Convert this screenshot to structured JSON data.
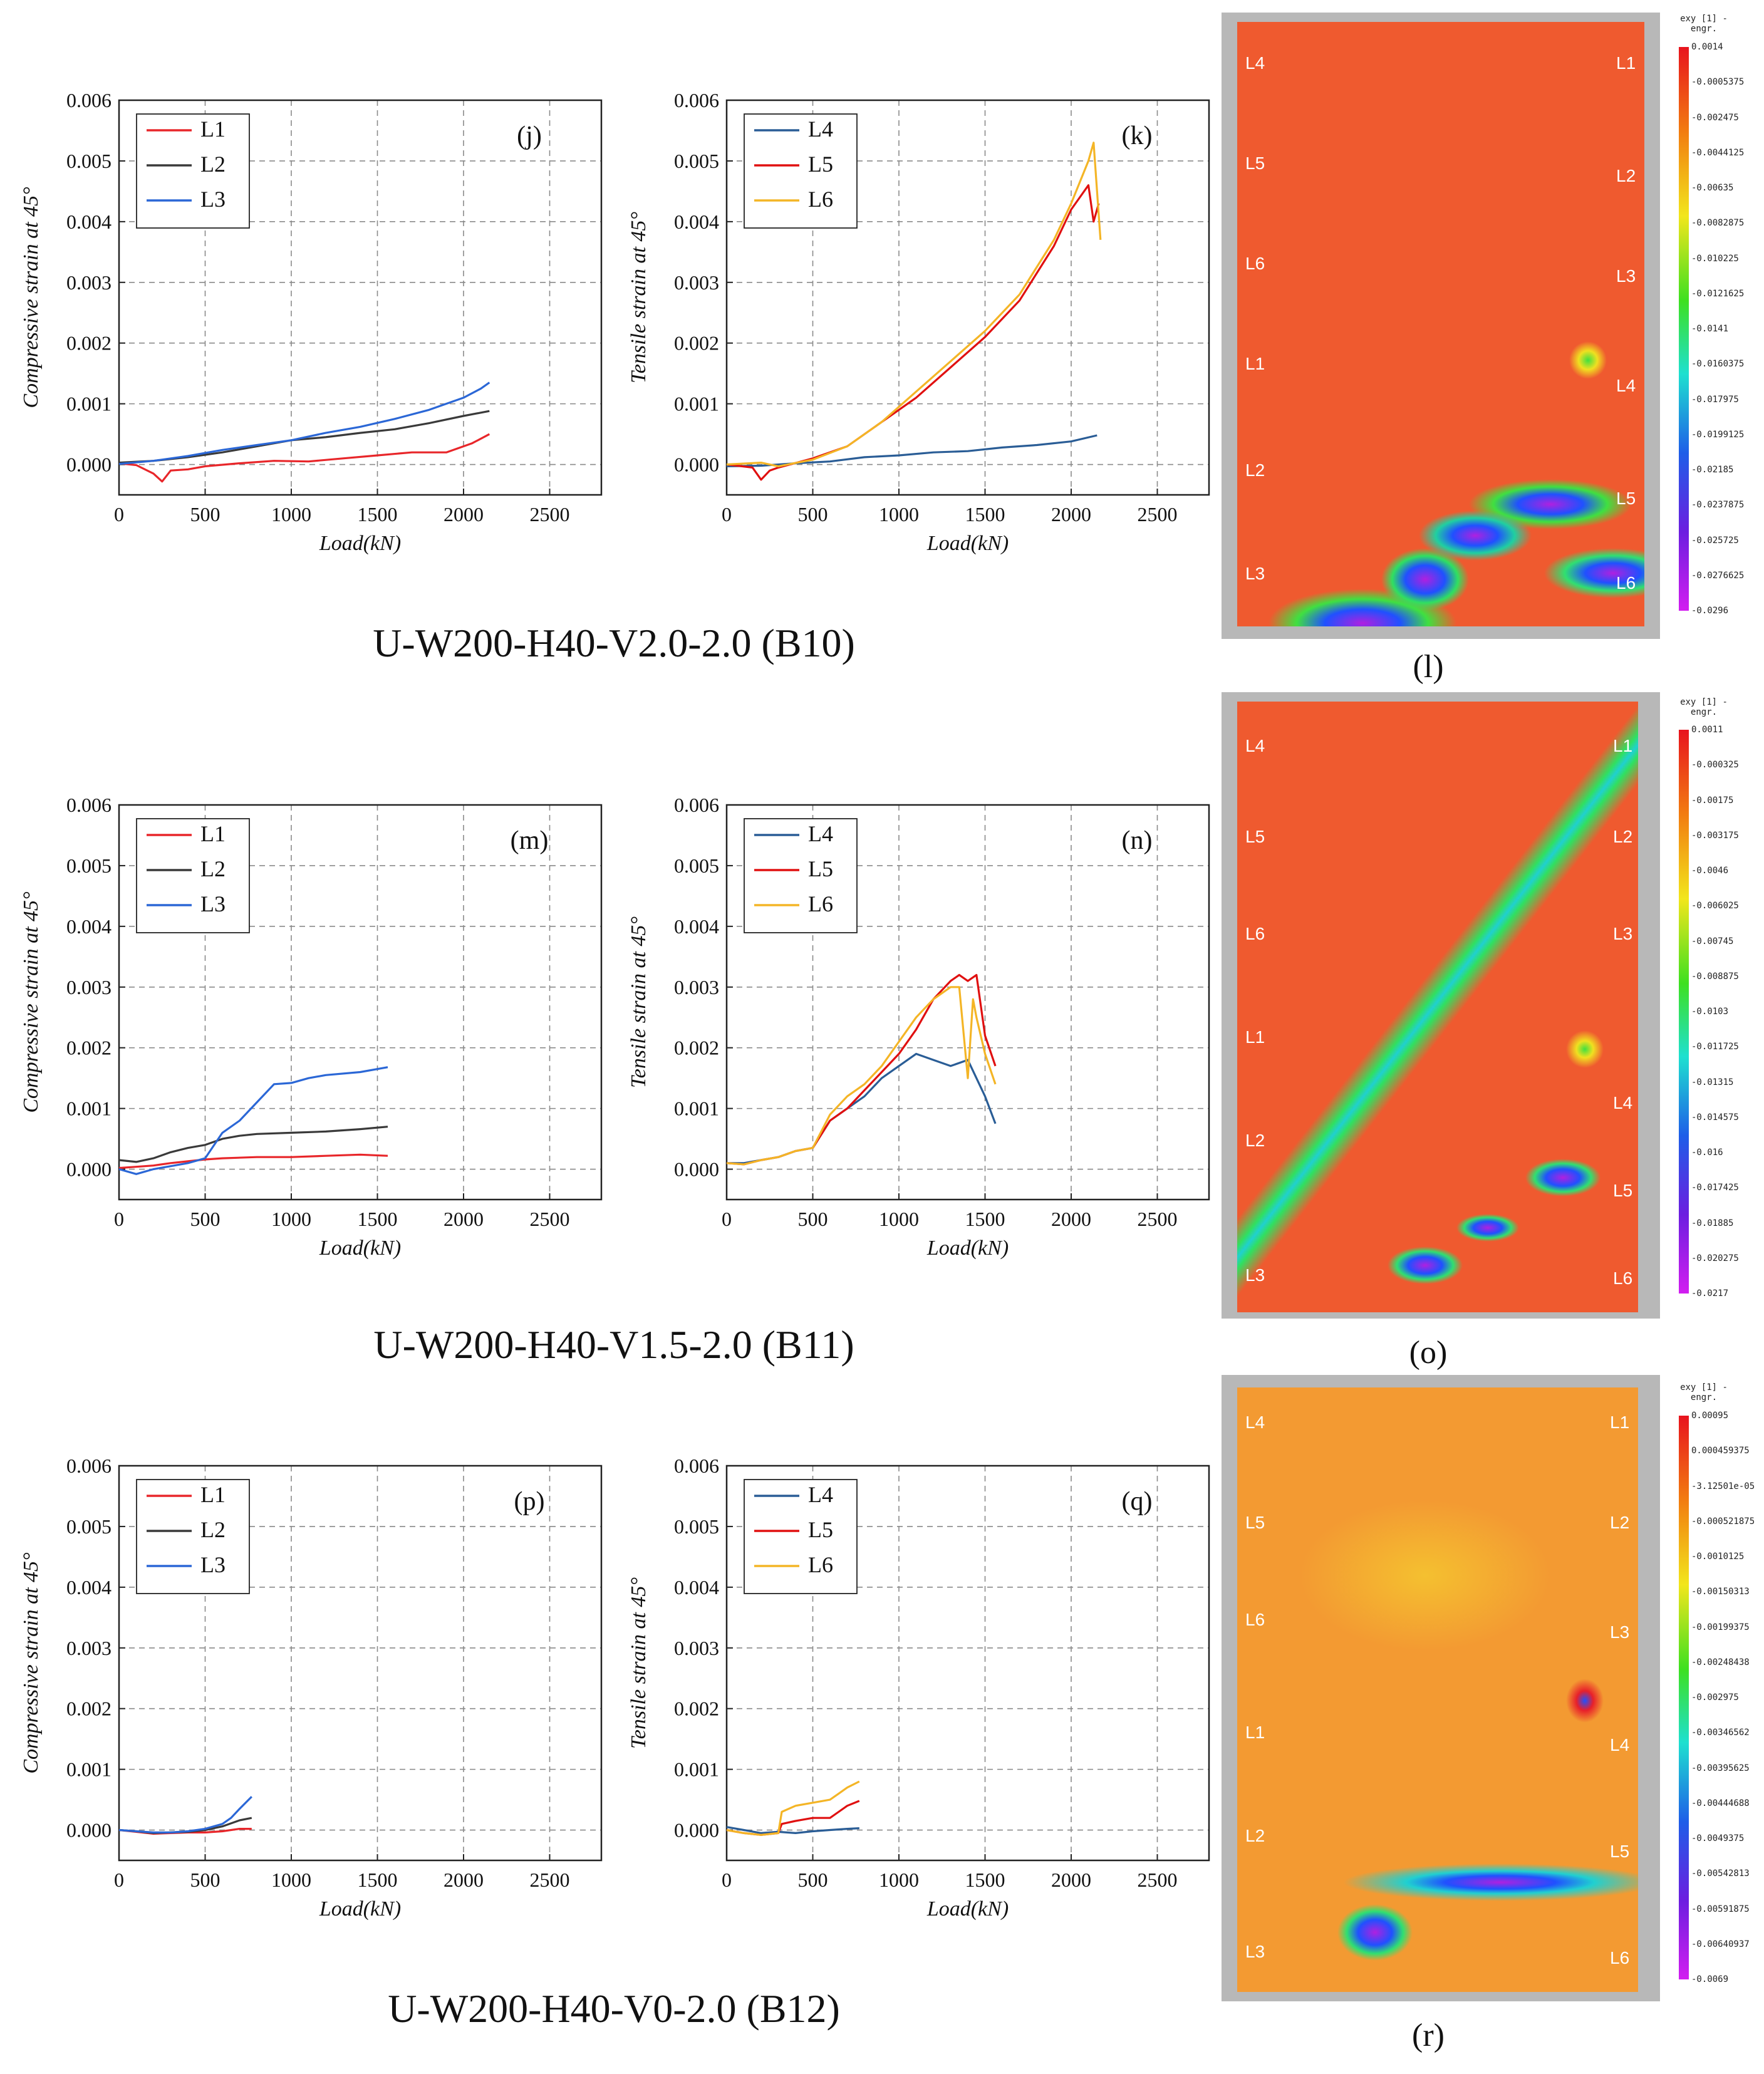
{
  "figure_titles": [
    "U-W200-H40-V2.0-2.0 (B10)",
    "U-W200-H40-V1.5-2.0 (B11)",
    "U-W200-H40-V0-2.0 (B12)"
  ],
  "chart_data": [
    {
      "id": "j",
      "type": "line",
      "panel_label": "(j)",
      "xlabel": "Load(kN)",
      "ylabel": "Compressive strain at 45°",
      "xlim": [
        0,
        2800
      ],
      "ylim": [
        -0.0005,
        0.006
      ],
      "xticks": [
        "0",
        "500",
        "1000",
        "1500",
        "2000",
        "2500"
      ],
      "yticks": [
        "0.000",
        "0.001",
        "0.002",
        "0.003",
        "0.004",
        "0.005",
        "0.006"
      ],
      "series": [
        {
          "name": "L1",
          "color": "#e8262a",
          "x": [
            0,
            100,
            200,
            250,
            300,
            400,
            500,
            700,
            900,
            1100,
            1300,
            1500,
            1700,
            1900,
            2050,
            2150
          ],
          "y": [
            2e-05,
            -1e-05,
            -0.00015,
            -0.00028,
            -0.0001,
            -8e-05,
            -3e-05,
            2e-05,
            6e-05,
            5e-05,
            0.0001,
            0.00015,
            0.0002,
            0.0002,
            0.00035,
            0.0005
          ]
        },
        {
          "name": "L2",
          "color": "#3a3a3a",
          "x": [
            0,
            200,
            400,
            600,
            800,
            1000,
            1200,
            1400,
            1600,
            1800,
            2000,
            2150
          ],
          "y": [
            3e-05,
            6e-05,
            0.00012,
            0.0002,
            0.0003,
            0.0004,
            0.00045,
            0.00052,
            0.00058,
            0.00068,
            0.0008,
            0.00088
          ]
        },
        {
          "name": "L3",
          "color": "#2b67d6",
          "x": [
            0,
            200,
            400,
            600,
            800,
            1000,
            1200,
            1400,
            1600,
            1800,
            2000,
            2100,
            2150
          ],
          "y": [
            1e-05,
            6e-05,
            0.00014,
            0.00024,
            0.00032,
            0.0004,
            0.00052,
            0.00062,
            0.00075,
            0.0009,
            0.0011,
            0.00125,
            0.00135
          ]
        }
      ]
    },
    {
      "id": "k",
      "type": "line",
      "panel_label": "(k)",
      "xlabel": "Load(kN)",
      "ylabel": "Tensile strain at 45°",
      "xlim": [
        0,
        2800
      ],
      "ylim": [
        -0.0005,
        0.006
      ],
      "xticks": [
        "0",
        "500",
        "1000",
        "1500",
        "2000",
        "2500"
      ],
      "yticks": [
        "0.000",
        "0.001",
        "0.002",
        "0.003",
        "0.004",
        "0.005",
        "0.006"
      ],
      "series": [
        {
          "name": "L4",
          "color": "#2a5d96",
          "x": [
            0,
            200,
            400,
            600,
            800,
            1000,
            1200,
            1400,
            1600,
            1800,
            2000,
            2150
          ],
          "y": [
            -3e-05,
            -2e-05,
            2e-05,
            5e-05,
            0.00012,
            0.00015,
            0.0002,
            0.00022,
            0.00028,
            0.00032,
            0.00038,
            0.00048
          ]
        },
        {
          "name": "L5",
          "color": "#e01010",
          "x": [
            0,
            150,
            200,
            250,
            300,
            500,
            700,
            900,
            1100,
            1300,
            1500,
            1700,
            1900,
            2000,
            2100,
            2130,
            2160
          ],
          "y": [
            0,
            -5e-05,
            -0.00025,
            -0.0001,
            -5e-05,
            0.0001,
            0.0003,
            0.0007,
            0.0011,
            0.0016,
            0.0021,
            0.0027,
            0.0036,
            0.0042,
            0.0046,
            0.004,
            0.0043
          ]
        },
        {
          "name": "L6",
          "color": "#f4b526",
          "x": [
            0,
            200,
            300,
            500,
            700,
            900,
            1100,
            1300,
            1500,
            1700,
            1900,
            2000,
            2100,
            2130,
            2150,
            2170
          ],
          "y": [
            0,
            3e-05,
            -3e-05,
            8e-05,
            0.0003,
            0.0007,
            0.0012,
            0.0017,
            0.0022,
            0.0028,
            0.0037,
            0.0043,
            0.005,
            0.0053,
            0.0045,
            0.0037
          ]
        }
      ]
    },
    {
      "id": "m",
      "type": "line",
      "panel_label": "(m)",
      "xlabel": "Load(kN)",
      "ylabel": "Compressive strain at 45°",
      "xlim": [
        0,
        2800
      ],
      "ylim": [
        -0.0005,
        0.006
      ],
      "xticks": [
        "0",
        "500",
        "1000",
        "1500",
        "2000",
        "2500"
      ],
      "yticks": [
        "0.000",
        "0.001",
        "0.002",
        "0.003",
        "0.004",
        "0.005",
        "0.006"
      ],
      "series": [
        {
          "name": "L1",
          "color": "#e8262a",
          "x": [
            0,
            100,
            200,
            300,
            400,
            500,
            600,
            800,
            1000,
            1200,
            1400,
            1560
          ],
          "y": [
            2e-05,
            4e-05,
            6e-05,
            0.0001,
            0.00013,
            0.00016,
            0.00018,
            0.0002,
            0.0002,
            0.00022,
            0.00024,
            0.00022
          ]
        },
        {
          "name": "L2",
          "color": "#3a3a3a",
          "x": [
            0,
            100,
            200,
            300,
            400,
            500,
            600,
            700,
            800,
            1000,
            1200,
            1400,
            1560
          ],
          "y": [
            0.00015,
            0.00012,
            0.00018,
            0.00028,
            0.00035,
            0.0004,
            0.0005,
            0.00055,
            0.00058,
            0.0006,
            0.00062,
            0.00066,
            0.0007
          ]
        },
        {
          "name": "L3",
          "color": "#2b67d6",
          "x": [
            0,
            100,
            200,
            300,
            400,
            500,
            600,
            700,
            800,
            900,
            1000,
            1100,
            1200,
            1400,
            1560
          ],
          "y": [
            0,
            -8e-05,
            0.0,
            5e-05,
            0.0001,
            0.00018,
            0.0006,
            0.0008,
            0.0011,
            0.0014,
            0.00142,
            0.0015,
            0.00155,
            0.0016,
            0.00168
          ]
        }
      ]
    },
    {
      "id": "n",
      "type": "line",
      "panel_label": "(n)",
      "xlabel": "Load(kN)",
      "ylabel": "Tensile strain at 45°",
      "xlim": [
        0,
        2800
      ],
      "ylim": [
        -0.0005,
        0.006
      ],
      "xticks": [
        "0",
        "500",
        "1000",
        "1500",
        "2000",
        "2500"
      ],
      "yticks": [
        "0.000",
        "0.001",
        "0.002",
        "0.003",
        "0.004",
        "0.005",
        "0.006"
      ],
      "series": [
        {
          "name": "L4",
          "color": "#2a5d96",
          "x": [
            0,
            100,
            200,
            300,
            400,
            500,
            600,
            700,
            800,
            900,
            1000,
            1100,
            1200,
            1300,
            1400,
            1500,
            1560
          ],
          "y": [
            0.0001,
            0.0001,
            0.00015,
            0.0002,
            0.0003,
            0.00035,
            0.0008,
            0.001,
            0.0012,
            0.0015,
            0.0017,
            0.0019,
            0.0018,
            0.0017,
            0.0018,
            0.0012,
            0.00075
          ]
        },
        {
          "name": "L5",
          "color": "#e01010",
          "x": [
            0,
            100,
            200,
            300,
            400,
            500,
            600,
            700,
            800,
            900,
            1000,
            1100,
            1200,
            1300,
            1350,
            1400,
            1450,
            1500,
            1560
          ],
          "y": [
            0.0001,
            8e-05,
            0.00015,
            0.0002,
            0.0003,
            0.00035,
            0.0008,
            0.001,
            0.0013,
            0.0016,
            0.0019,
            0.0023,
            0.0028,
            0.0031,
            0.0032,
            0.0031,
            0.0032,
            0.0022,
            0.0017
          ]
        },
        {
          "name": "L6",
          "color": "#f4b526",
          "x": [
            0,
            100,
            200,
            300,
            400,
            500,
            600,
            700,
            800,
            900,
            1000,
            1100,
            1200,
            1300,
            1350,
            1400,
            1430,
            1450,
            1500,
            1560
          ],
          "y": [
            0.0001,
            8e-05,
            0.00015,
            0.0002,
            0.0003,
            0.00035,
            0.0009,
            0.0012,
            0.0014,
            0.0017,
            0.0021,
            0.0025,
            0.0028,
            0.003,
            0.003,
            0.0015,
            0.0028,
            0.0025,
            0.0019,
            0.0014
          ]
        }
      ]
    },
    {
      "id": "p",
      "type": "line",
      "panel_label": "(p)",
      "xlabel": "Load(kN)",
      "ylabel": "Compressive strain at 45°",
      "xlim": [
        0,
        2800
      ],
      "ylim": [
        -0.0005,
        0.006
      ],
      "xticks": [
        "0",
        "500",
        "1000",
        "1500",
        "2000",
        "2500"
      ],
      "yticks": [
        "0.000",
        "0.001",
        "0.002",
        "0.003",
        "0.004",
        "0.005",
        "0.006"
      ],
      "series": [
        {
          "name": "L1",
          "color": "#e8262a",
          "x": [
            0,
            100,
            200,
            300,
            400,
            500,
            600,
            700,
            770
          ],
          "y": [
            0,
            -3e-05,
            -6e-05,
            -5e-05,
            -4e-05,
            -4e-05,
            -2e-05,
            2e-05,
            2e-05
          ]
        },
        {
          "name": "L2",
          "color": "#3a3a3a",
          "x": [
            0,
            100,
            200,
            300,
            400,
            500,
            600,
            700,
            770
          ],
          "y": [
            0,
            -2e-05,
            -5e-05,
            -4e-05,
            -3e-05,
            0.0,
            6e-05,
            0.00016,
            0.0002
          ]
        },
        {
          "name": "L3",
          "color": "#2b67d6",
          "x": [
            0,
            100,
            200,
            300,
            400,
            500,
            600,
            650,
            700,
            770
          ],
          "y": [
            0,
            -2e-05,
            -4e-05,
            -4e-05,
            -2e-05,
            2e-05,
            0.0001,
            0.0002,
            0.00035,
            0.00055
          ]
        }
      ]
    },
    {
      "id": "q",
      "type": "line",
      "panel_label": "(q)",
      "xlabel": "Load(kN)",
      "ylabel": "Tensile strain at 45°",
      "xlim": [
        0,
        2800
      ],
      "ylim": [
        -0.0005,
        0.006
      ],
      "xticks": [
        "0",
        "500",
        "1000",
        "1500",
        "2000",
        "2500"
      ],
      "yticks": [
        "0.000",
        "0.001",
        "0.002",
        "0.003",
        "0.004",
        "0.005",
        "0.006"
      ],
      "series": [
        {
          "name": "L4",
          "color": "#2a5d96",
          "x": [
            0,
            100,
            200,
            300,
            400,
            500,
            600,
            700,
            770
          ],
          "y": [
            5e-05,
            0.0,
            -5e-05,
            -3e-05,
            -5e-05,
            -2e-05,
            0.0,
            2e-05,
            3e-05
          ]
        },
        {
          "name": "L5",
          "color": "#e01010",
          "x": [
            0,
            100,
            200,
            300,
            320,
            400,
            500,
            600,
            650,
            700,
            770
          ],
          "y": [
            0,
            -5e-05,
            -8e-05,
            -5e-05,
            0.0001,
            0.00015,
            0.0002,
            0.0002,
            0.0003,
            0.0004,
            0.00048
          ]
        },
        {
          "name": "L6",
          "color": "#f4b526",
          "x": [
            0,
            100,
            200,
            300,
            320,
            400,
            500,
            600,
            650,
            700,
            770
          ],
          "y": [
            0,
            -5e-05,
            -8e-05,
            -5e-05,
            0.0003,
            0.0004,
            0.00045,
            0.0005,
            0.0006,
            0.0007,
            0.0008
          ]
        }
      ]
    }
  ],
  "dic_panels": [
    {
      "id": "l",
      "caption": "(l)",
      "colorbar_title": "exy [1] - engr.",
      "colorbar_ticks": [
        "0.0014",
        "-0.0005375",
        "-0.002475",
        "-0.0044125",
        "-0.00635",
        "-0.0082875",
        "-0.010225",
        "-0.0121625",
        "-0.0141",
        "-0.0160375",
        "-0.017975",
        "-0.0199125",
        "-0.02185",
        "-0.0237875",
        "-0.025725",
        "-0.0276625",
        "-0.0296"
      ],
      "left_labels": [
        "L4",
        "L5",
        "L6",
        "L1",
        "L2",
        "L3"
      ],
      "right_labels": [
        "L1",
        "L2",
        "L3",
        "L4",
        "L5",
        "L6"
      ]
    },
    {
      "id": "o",
      "caption": "(o)",
      "colorbar_title": "exy [1] - engr.",
      "colorbar_ticks": [
        "0.0011",
        "-0.000325",
        "-0.00175",
        "-0.003175",
        "-0.0046",
        "-0.006025",
        "-0.00745",
        "-0.008875",
        "-0.0103",
        "-0.011725",
        "-0.01315",
        "-0.014575",
        "-0.016",
        "-0.017425",
        "-0.01885",
        "-0.020275",
        "-0.0217"
      ],
      "left_labels": [
        "L4",
        "L5",
        "L6",
        "L1",
        "L2",
        "L3"
      ],
      "right_labels": [
        "L1",
        "L2",
        "L3",
        "L4",
        "L5",
        "L6"
      ]
    },
    {
      "id": "r",
      "caption": "(r)",
      "colorbar_title": "exy [1] - engr.",
      "colorbar_ticks": [
        "0.00095",
        "0.000459375",
        "-3.12501e-05",
        "-0.000521875",
        "-0.0010125",
        "-0.00150313",
        "-0.00199375",
        "-0.00248438",
        "-0.002975",
        "-0.00346562",
        "-0.00395625",
        "-0.00444688",
        "-0.0049375",
        "-0.00542813",
        "-0.00591875",
        "-0.00640937",
        "-0.0069"
      ],
      "left_labels": [
        "L4",
        "L5",
        "L6",
        "L1",
        "L2",
        "L3"
      ],
      "right_labels": [
        "L1",
        "L2",
        "L3",
        "L4",
        "L5",
        "L6"
      ]
    }
  ],
  "colors": {
    "dic_background": "#ef5a2f",
    "grid": "#8a8a8a"
  }
}
